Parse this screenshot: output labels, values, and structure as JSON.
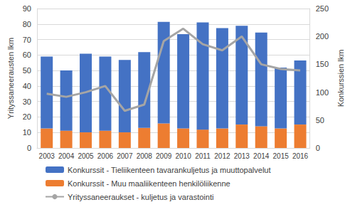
{
  "chart_data": {
    "type": "bar",
    "stacked": true,
    "grid": true,
    "legend": "bottom",
    "ylabel": "Yrityssaneerausten lkm",
    "y2label": "Konkurssien lkm",
    "categories": [
      "2003",
      "2004",
      "2005",
      "2006",
      "2007",
      "2008",
      "2009",
      "2010",
      "2011",
      "2012",
      "2013",
      "2014",
      "2015",
      "2016"
    ],
    "ylim": [
      0,
      90
    ],
    "yticks": [
      0,
      10,
      20,
      30,
      40,
      50,
      60,
      70,
      80,
      90
    ],
    "y2lim": [
      0,
      250
    ],
    "y2ticks": [
      0,
      50,
      100,
      150,
      200,
      250
    ],
    "series": [
      {
        "name": "Konkurssit - Tieliikenteen tavarankuljetus ja muuttopalvelut",
        "type": "bar",
        "axis": "y2",
        "color": "#4472c4",
        "values": [
          129,
          108,
          141,
          133,
          130,
          136,
          182,
          169,
          192,
          180,
          177,
          168,
          109,
          115
        ]
      },
      {
        "name": "Konkurssit - Muu maaliikenteen henkilöliikenne",
        "type": "bar",
        "axis": "y2",
        "color": "#ed7d31",
        "values": [
          35,
          31,
          28,
          31,
          28,
          36,
          44,
          35,
          33,
          35,
          42,
          39,
          35,
          42
        ]
      },
      {
        "name": "Yrityssaneeraukset - kuljetus ja varastointi",
        "type": "line",
        "axis": "y",
        "color": "#a5a5a5",
        "values": [
          35,
          33,
          36,
          40,
          24,
          28,
          69,
          77,
          67,
          63,
          72,
          54,
          51,
          50
        ]
      }
    ]
  }
}
